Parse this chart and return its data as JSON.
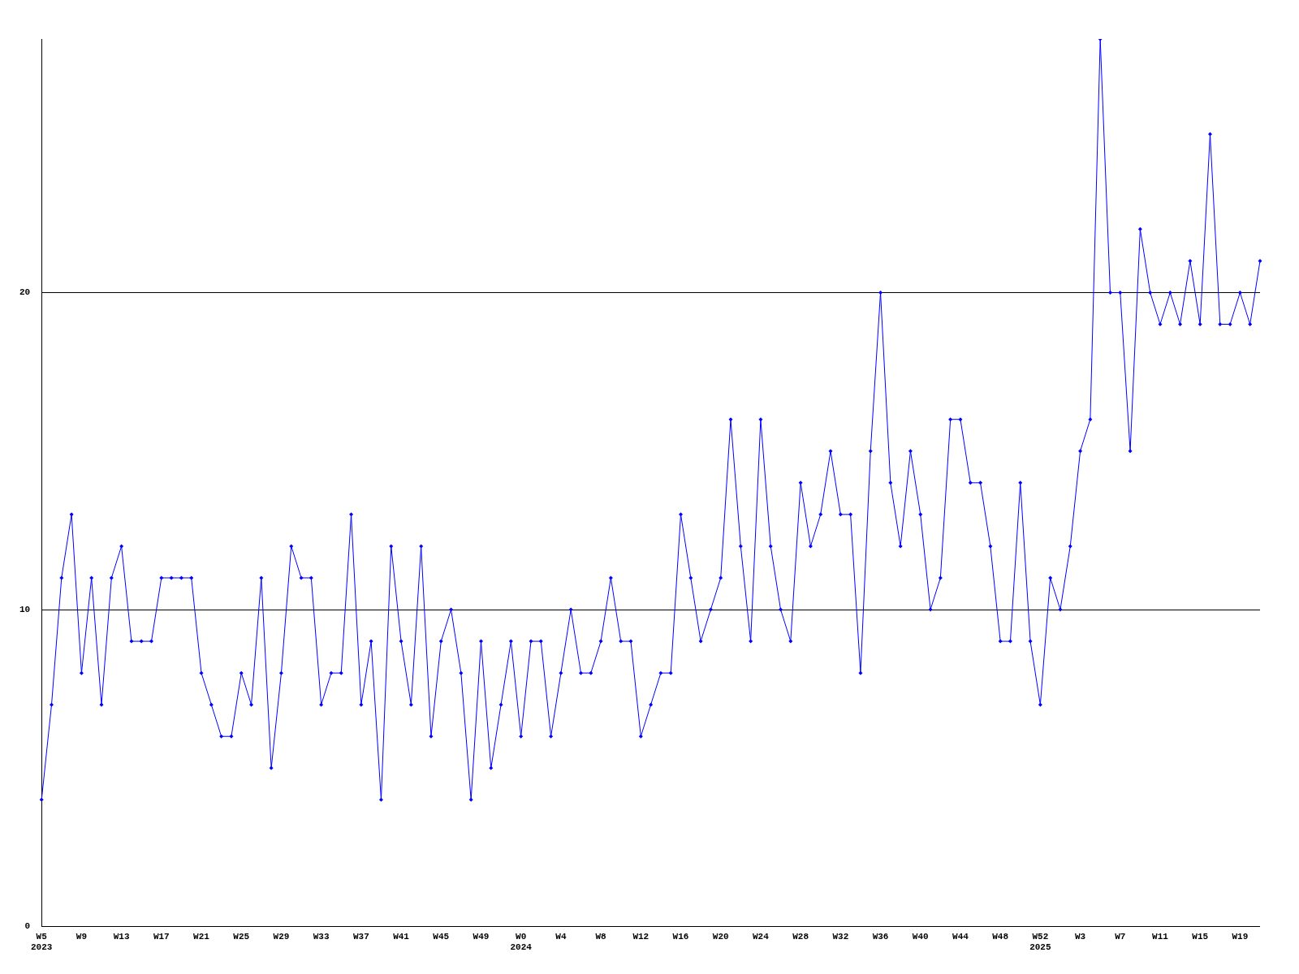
{
  "chart_data": {
    "type": "line",
    "categories": [
      "W5\n2023",
      null,
      null,
      null,
      "W9",
      null,
      null,
      null,
      "W13",
      null,
      null,
      null,
      "W17",
      null,
      null,
      null,
      "W21",
      null,
      null,
      null,
      "W25",
      null,
      null,
      null,
      "W29",
      null,
      null,
      null,
      "W33",
      null,
      null,
      null,
      "W37",
      null,
      null,
      null,
      "W41",
      null,
      null,
      null,
      "W45",
      null,
      null,
      null,
      "W49",
      null,
      null,
      null,
      "W0\n2024",
      null,
      null,
      null,
      "W4",
      null,
      null,
      null,
      "W8",
      null,
      null,
      null,
      "W12",
      null,
      null,
      null,
      "W16",
      null,
      null,
      null,
      "W20",
      null,
      null,
      null,
      "W24",
      null,
      null,
      null,
      "W28",
      null,
      null,
      null,
      "W32",
      null,
      null,
      null,
      "W36",
      null,
      null,
      null,
      "W40",
      null,
      null,
      null,
      "W44",
      null,
      null,
      null,
      "W48",
      null,
      null,
      null,
      "W52\n2025",
      null,
      null,
      null,
      "W3",
      null,
      null,
      null,
      "W7",
      null,
      null,
      null,
      "W11",
      null,
      null,
      null,
      "W15",
      null,
      null,
      null,
      "W19",
      null,
      null
    ],
    "series": [
      {
        "color": "#0000ff",
        "values": [
          4,
          7,
          11,
          13,
          8,
          11,
          7,
          11,
          12,
          9,
          9,
          9,
          11,
          11,
          11,
          11,
          8,
          7,
          6,
          6,
          8,
          7,
          11,
          5,
          8,
          12,
          11,
          11,
          7,
          8,
          8,
          13,
          7,
          9,
          4,
          12,
          9,
          7,
          12,
          6,
          9,
          10,
          8,
          4,
          9,
          5,
          7,
          9,
          6,
          9,
          9,
          6,
          8,
          10,
          8,
          8,
          9,
          11,
          9,
          9,
          6,
          7,
          8,
          8,
          13,
          11,
          9,
          10,
          11,
          16,
          12,
          9,
          16,
          12,
          10,
          9,
          14,
          12,
          13,
          15,
          13,
          13,
          8,
          15,
          20,
          14,
          12,
          15,
          13,
          10,
          11,
          16,
          16,
          14,
          14,
          12,
          9,
          9,
          14,
          9,
          7,
          11,
          10,
          12,
          15,
          16,
          28,
          20,
          20,
          15,
          22,
          20,
          19,
          20,
          19,
          21,
          19,
          25,
          19,
          19,
          20,
          19,
          21
        ]
      }
    ],
    "ylim": [
      0,
      28
    ],
    "yticks": [
      0,
      10,
      20
    ],
    "grid": "y",
    "marker": "diamond",
    "line_style": "solid"
  }
}
